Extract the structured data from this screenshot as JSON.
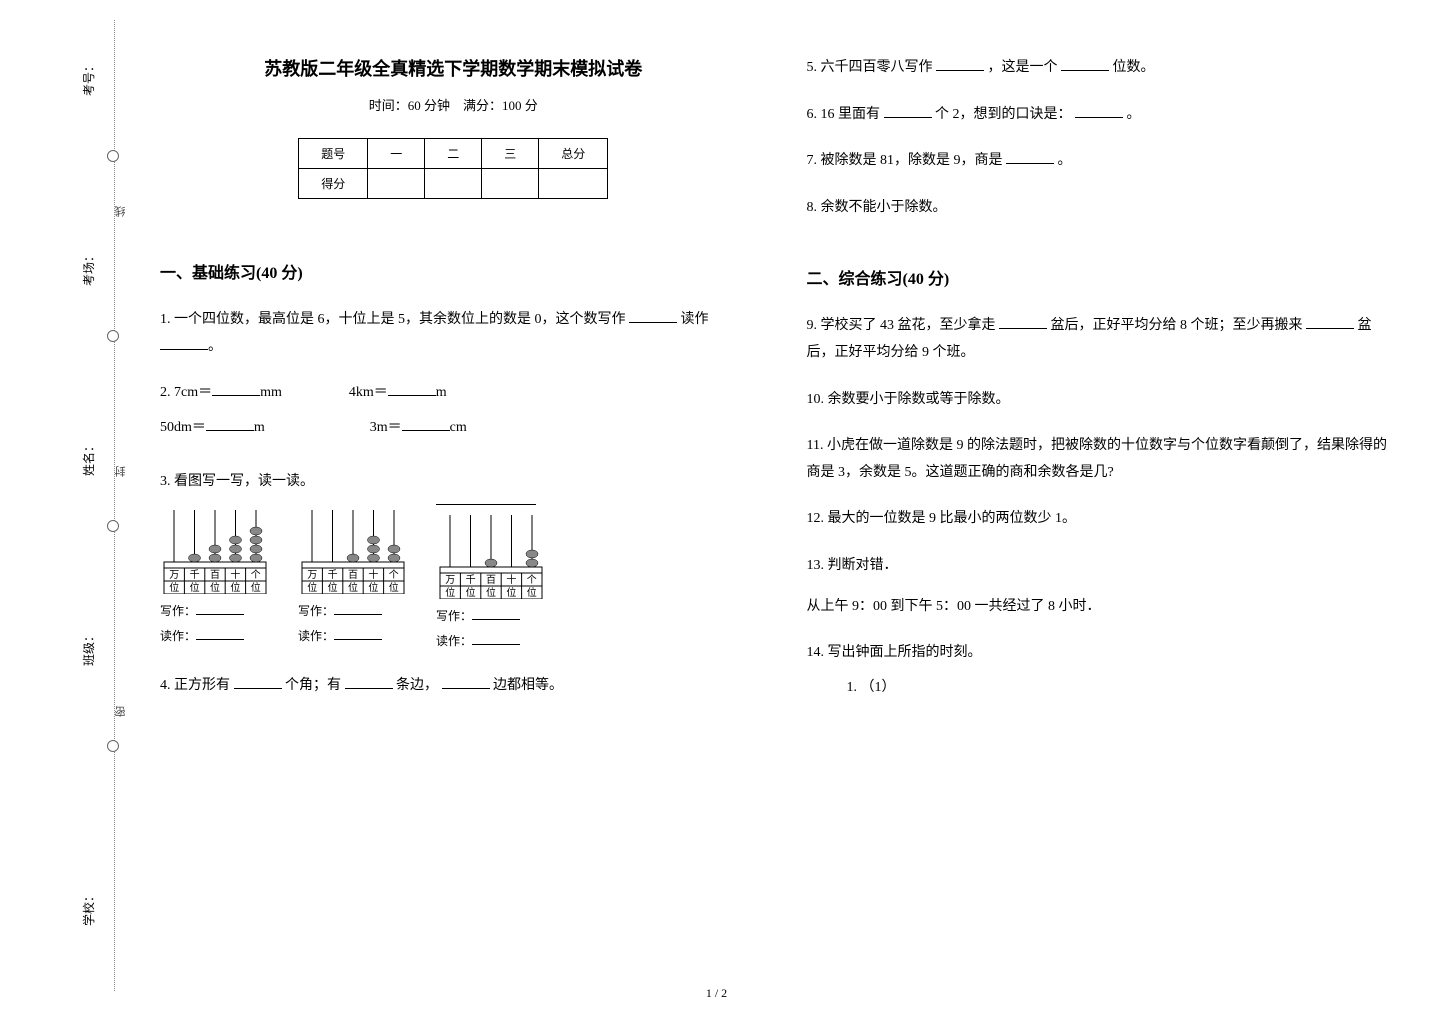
{
  "binding": {
    "labels": [
      "考号：",
      "考场：",
      "姓名：",
      "班级：",
      "学校："
    ],
    "line_chars": [
      "线",
      "封",
      "密"
    ]
  },
  "header": {
    "title": "苏教版二年级全真精选下学期数学期末模拟试卷",
    "subtitle": "时间：60 分钟　满分：100 分"
  },
  "score_table": {
    "row1": [
      "题号",
      "一",
      "二",
      "三",
      "总分"
    ],
    "row2_label": "得分"
  },
  "section1": {
    "heading": "一、基础练习(40 分)",
    "q1": "1.  一个四位数，最高位是 6，十位上是 5，其余数位上的数是 0，这个数写作",
    "q1b": "读作",
    "q2_label": "2.  ",
    "q2_items": [
      {
        "lhs": "7cm＝",
        "rhs": "mm"
      },
      {
        "lhs": "4km＝",
        "rhs": "m"
      },
      {
        "lhs": "50dm＝",
        "rhs": "m"
      },
      {
        "lhs": "3m＝",
        "rhs": "cm"
      }
    ],
    "q3": "3.  看图写一写，读一读。",
    "abacus_labels": [
      "万",
      "千",
      "百",
      "十",
      "个"
    ],
    "abacus_row2": [
      "位",
      "位",
      "位",
      "位",
      "位"
    ],
    "abacus_write": "写作：",
    "abacus_read": "读作：",
    "abacus_data": [
      {
        "beads": [
          0,
          1,
          2,
          3,
          4
        ],
        "topline": false
      },
      {
        "beads": [
          0,
          0,
          1,
          3,
          2
        ],
        "topline": false
      },
      {
        "beads": [
          0,
          0,
          1,
          0,
          2
        ],
        "topline": true
      }
    ],
    "q4a": "4.  正方形有",
    "q4b": "个角；有",
    "q4c": "条边，",
    "q4d": "边都相等。",
    "q5a": "5.  六千四百零八写作",
    "q5b": "，这是一个",
    "q5c": "位数。",
    "q6a": "6.  16 里面有",
    "q6b": "个 2，想到的口诀是：",
    "q6c": "。",
    "q7a": "7.  被除数是 81，除数是 9，商是",
    "q7b": "。",
    "q8": "8.  余数不能小于除数。"
  },
  "section2": {
    "heading": "二、综合练习(40 分)",
    "q9a": "9.  学校买了 43 盆花，至少拿走",
    "q9b": "盆后，正好平均分给 8 个班；至少再搬来",
    "q9c": "盆后，正好平均分给 9 个班。",
    "q10": "10.  余数要小于除数或等于除数。",
    "q11": "11.  小虎在做一道除数是 9 的除法题时，把被除数的十位数字与个位数字看颠倒了，结果除得的商是 3，余数是 5。这道题正确的商和余数各是几?",
    "q12": "12.  最大的一位数是 9 比最小的两位数少 1。",
    "q13": "13.  判断对错．",
    "q13b": "从上午 9：00 到下午 5：00 一共经过了 8 小时．",
    "q14": "14.  写出钟面上所指的时刻。",
    "q14_sub": "1.  （1）"
  },
  "page_number": "1 / 2",
  "style": {
    "colors": {
      "text": "#000000",
      "bg": "#ffffff",
      "dotted": "#888888",
      "binding_text": "#444444"
    },
    "fontsize": {
      "title": 18,
      "section": 16,
      "body": 14,
      "small": 12
    },
    "bead_color": "#888888",
    "frame_stroke": "#000000"
  }
}
